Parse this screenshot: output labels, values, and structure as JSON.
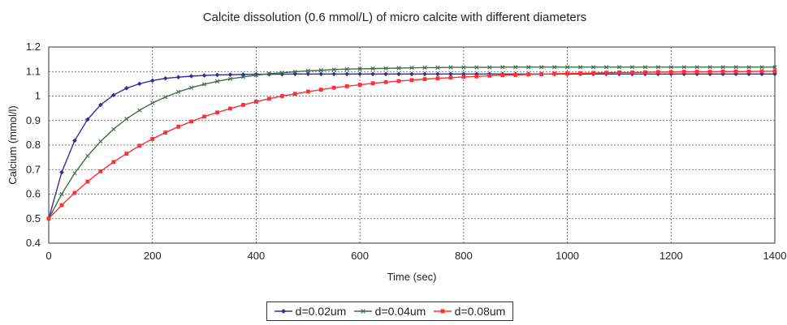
{
  "chart_data": {
    "type": "line",
    "title": "Calcite dissolution (0.6 mmol/L) of micro calcite with different diameters",
    "xlabel": "Time (sec)",
    "ylabel": "Calcium (mmol/l)",
    "xlim": [
      0,
      1400
    ],
    "ylim": [
      0.4,
      1.2
    ],
    "xticks": [
      0,
      200,
      400,
      600,
      800,
      1000,
      1200,
      1400
    ],
    "yticks": [
      0.4,
      0.5,
      0.6,
      0.7,
      0.8,
      0.9,
      1,
      1.1,
      1.2
    ],
    "xtick_labels": [
      "0",
      "200",
      "400",
      "600",
      "800",
      "1000",
      "1200",
      "1400"
    ],
    "ytick_labels": [
      "0.4",
      "0.5",
      "0.6",
      "0.7",
      "0.8",
      "0.9",
      "1",
      "1.1",
      "1.2"
    ],
    "grid": true,
    "legend_position": "bottom-center",
    "x": [
      0,
      25,
      50,
      75,
      100,
      125,
      150,
      175,
      200,
      225,
      250,
      275,
      300,
      325,
      350,
      375,
      400,
      425,
      450,
      475,
      500,
      525,
      550,
      575,
      600,
      625,
      650,
      675,
      700,
      725,
      750,
      775,
      800,
      825,
      850,
      875,
      900,
      925,
      950,
      975,
      1000,
      1025,
      1050,
      1075,
      1100,
      1125,
      1150,
      1175,
      1200,
      1225,
      1250,
      1275,
      1300,
      1325,
      1350,
      1375,
      1400
    ],
    "series": [
      {
        "name": "d=0.02um",
        "color": "#2e2e9e",
        "marker": "diamond",
        "values": [
          0.5,
          0.689,
          0.818,
          0.905,
          0.964,
          1.004,
          1.032,
          1.05,
          1.063,
          1.072,
          1.077,
          1.081,
          1.084,
          1.086,
          1.087,
          1.088,
          1.089,
          1.089,
          1.089,
          1.09,
          1.09,
          1.09,
          1.09,
          1.09,
          1.09,
          1.09,
          1.09,
          1.09,
          1.09,
          1.09,
          1.09,
          1.09,
          1.09,
          1.09,
          1.09,
          1.09,
          1.09,
          1.09,
          1.09,
          1.09,
          1.09,
          1.09,
          1.09,
          1.09,
          1.09,
          1.09,
          1.09,
          1.09,
          1.09,
          1.09,
          1.09,
          1.09,
          1.09,
          1.09,
          1.09,
          1.09,
          1.09
        ]
      },
      {
        "name": "d=0.04um",
        "color": "#3f6b4a",
        "marker": "x",
        "values": [
          0.5,
          0.6,
          0.685,
          0.756,
          0.815,
          0.865,
          0.907,
          0.942,
          0.972,
          0.996,
          1.017,
          1.034,
          1.048,
          1.06,
          1.07,
          1.078,
          1.085,
          1.091,
          1.095,
          1.099,
          1.103,
          1.105,
          1.108,
          1.11,
          1.111,
          1.112,
          1.113,
          1.114,
          1.115,
          1.116,
          1.116,
          1.117,
          1.117,
          1.117,
          1.117,
          1.118,
          1.118,
          1.118,
          1.118,
          1.118,
          1.118,
          1.118,
          1.118,
          1.118,
          1.118,
          1.118,
          1.118,
          1.118,
          1.118,
          1.118,
          1.118,
          1.118,
          1.118,
          1.118,
          1.118,
          1.118,
          1.118
        ]
      },
      {
        "name": "d=0.08um",
        "color": "#ff3030",
        "marker": "square",
        "values": [
          0.5,
          0.555,
          0.605,
          0.651,
          0.693,
          0.731,
          0.765,
          0.797,
          0.825,
          0.851,
          0.875,
          0.896,
          0.916,
          0.933,
          0.949,
          0.964,
          0.977,
          0.989,
          1.0,
          1.009,
          1.018,
          1.026,
          1.034,
          1.04,
          1.046,
          1.052,
          1.057,
          1.061,
          1.065,
          1.069,
          1.072,
          1.075,
          1.078,
          1.08,
          1.083,
          1.085,
          1.086,
          1.088,
          1.089,
          1.091,
          1.092,
          1.093,
          1.094,
          1.095,
          1.096,
          1.096,
          1.097,
          1.098,
          1.098,
          1.099,
          1.099,
          1.099,
          1.1,
          1.1,
          1.1,
          1.101,
          1.101
        ]
      }
    ]
  }
}
